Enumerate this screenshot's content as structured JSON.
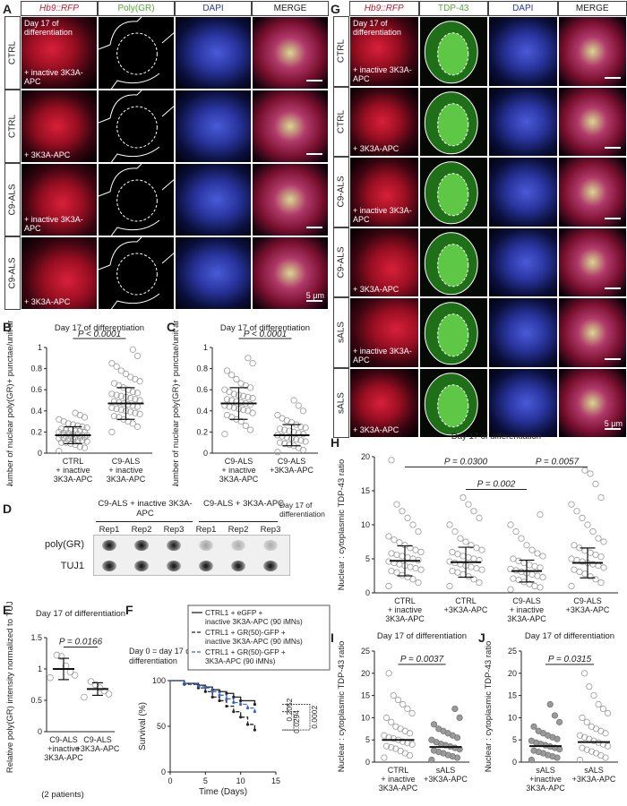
{
  "panel_letters": [
    "A",
    "B",
    "C",
    "D",
    "E",
    "F",
    "G",
    "H",
    "I",
    "J"
  ],
  "panelA": {
    "headers": [
      "Hb9::RFP",
      "Poly(GR)",
      "DAPI",
      "MERGE"
    ],
    "header_colors": [
      "#c0182a",
      "#5aa83a",
      "#2a3aa8",
      "#222222"
    ],
    "rows": [
      {
        "label": "CTRL",
        "condition": "+ inactive 3K3A-APC"
      },
      {
        "label": "CTRL",
        "condition": "+ 3K3A-APC"
      },
      {
        "label": "C9-ALS",
        "condition": "+ inactive 3K3A-APC"
      },
      {
        "label": "C9-ALS",
        "condition": "+ 3K3A-APC"
      }
    ],
    "day_note": "Day 17 of differentiation",
    "scale": "5 μm"
  },
  "panelG": {
    "headers": [
      "Hb9::RFP",
      "TDP-43",
      "DAPI",
      "MERGE"
    ],
    "header_colors": [
      "#c0182a",
      "#5aa83a",
      "#2a3aa8",
      "#222222"
    ],
    "rows": [
      {
        "label": "CTRL",
        "condition": "+ inactive 3K3A-APC"
      },
      {
        "label": "CTRL",
        "condition": "+ 3K3A-APC"
      },
      {
        "label": "C9-ALS",
        "condition": "+ inactive 3K3A-APC"
      },
      {
        "label": "C9-ALS",
        "condition": "+ 3K3A-APC"
      },
      {
        "label": "sALS",
        "condition": "+ inactive 3K3A-APC"
      },
      {
        "label": "sALS",
        "condition": "+ 3K3A-APC"
      }
    ],
    "day_note": "Day 17 of differentiation",
    "scale": "5 μm"
  },
  "panelD": {
    "day_note": "Day 17 of differentiation",
    "groups": [
      "C9-ALS + inactive 3K3A-APC",
      "C9-ALS + 3K3A-APC"
    ],
    "reps": [
      "Rep1",
      "Rep2",
      "Rep3",
      "Rep1",
      "Rep2",
      "Rep3"
    ],
    "row_labels": [
      "poly(GR)",
      "TUJ1"
    ]
  },
  "chart_data": [
    {
      "panel": "B",
      "type": "scatter",
      "title": "Day 17 of differentiation",
      "ylabel": "Number of nuclear poly(GR)+ punctae/unit area",
      "categories": [
        "CTRL + inactive 3K3A-APC",
        "C9-ALS + inactive 3K3A-APC"
      ],
      "ylim": [
        0,
        1.0
      ],
      "yticks": [
        0,
        0.2,
        0.4,
        0.6,
        0.8,
        1.0
      ],
      "means": [
        0.17,
        0.47
      ],
      "sd": [
        0.08,
        0.15
      ],
      "pvalue": "P < 0.0001",
      "dots": [
        [
          0.02,
          0.05,
          0.06,
          0.08,
          0.09,
          0.1,
          0.1,
          0.11,
          0.12,
          0.12,
          0.13,
          0.13,
          0.14,
          0.14,
          0.15,
          0.15,
          0.15,
          0.16,
          0.16,
          0.17,
          0.17,
          0.17,
          0.18,
          0.18,
          0.19,
          0.19,
          0.2,
          0.2,
          0.21,
          0.21,
          0.22,
          0.22,
          0.23,
          0.24,
          0.25,
          0.26,
          0.27,
          0.28,
          0.3,
          0.32,
          0.34,
          0.36,
          0.38
        ],
        [
          0.2,
          0.25,
          0.28,
          0.3,
          0.32,
          0.34,
          0.35,
          0.37,
          0.38,
          0.39,
          0.4,
          0.41,
          0.42,
          0.43,
          0.44,
          0.45,
          0.46,
          0.47,
          0.48,
          0.49,
          0.5,
          0.51,
          0.52,
          0.53,
          0.54,
          0.55,
          0.56,
          0.57,
          0.58,
          0.6,
          0.62,
          0.64,
          0.66,
          0.68,
          0.7,
          0.72,
          0.75,
          0.78,
          0.82,
          0.85,
          0.92,
          0.98
        ]
      ]
    },
    {
      "panel": "C",
      "type": "scatter",
      "title": "Day 17 of differentiation",
      "ylabel": "Number of nuclear poly(GR)+ punctae/unit area",
      "categories": [
        "C9-ALS + inactive 3K3A-APC",
        "C9-ALS +3K3A-APC"
      ],
      "ylim": [
        0,
        1.0
      ],
      "yticks": [
        0,
        0.2,
        0.4,
        0.6,
        0.8,
        1.0
      ],
      "means": [
        0.47,
        0.17
      ],
      "sd": [
        0.15,
        0.1
      ],
      "pvalue": "P < 0.0001",
      "dots": [
        [
          0.18,
          0.22,
          0.26,
          0.3,
          0.32,
          0.34,
          0.36,
          0.38,
          0.4,
          0.41,
          0.42,
          0.43,
          0.44,
          0.45,
          0.46,
          0.47,
          0.48,
          0.49,
          0.5,
          0.51,
          0.52,
          0.53,
          0.54,
          0.55,
          0.56,
          0.58,
          0.6,
          0.62,
          0.64,
          0.66,
          0.7,
          0.74,
          0.78,
          0.85,
          0.9
        ],
        [
          0.01,
          0.03,
          0.05,
          0.07,
          0.08,
          0.09,
          0.1,
          0.11,
          0.12,
          0.13,
          0.14,
          0.15,
          0.16,
          0.17,
          0.18,
          0.19,
          0.2,
          0.21,
          0.22,
          0.23,
          0.24,
          0.25,
          0.27,
          0.29,
          0.31,
          0.33,
          0.36,
          0.4,
          0.45,
          0.5
        ]
      ]
    },
    {
      "panel": "E",
      "type": "scatter",
      "title": "Day 17 of differentiation",
      "ylabel": "Relative poly(GR) intensity normalized to TUJ1",
      "categories": [
        "C9-ALS +inactive 3K3A-APC",
        "C9-ALS +3K3A-APC"
      ],
      "ylim": [
        0,
        1.5
      ],
      "yticks": [
        0,
        0.5,
        1.0,
        1.5
      ],
      "means": [
        1.0,
        0.68
      ],
      "sd": [
        0.17,
        0.1
      ],
      "pvalue": "P = 0.0166",
      "note": "(2 patients)",
      "dots": [
        [
          0.86,
          0.9,
          0.95,
          1.05,
          1.2,
          1.22
        ],
        [
          0.55,
          0.6,
          0.65,
          0.7,
          0.75,
          0.8
        ]
      ]
    },
    {
      "panel": "F",
      "type": "line",
      "xlabel": "Time (Days)",
      "ylabel": "Survival (%)",
      "xlim": [
        0,
        15
      ],
      "ylim": [
        0,
        100
      ],
      "xticks": [
        0,
        5,
        10,
        15
      ],
      "yticks": [
        0,
        50,
        100
      ],
      "annotation": "Day 0 = day 17 of differentiation",
      "series": [
        {
          "name": "CTRL1 + eGFP + inactive 3K3A-APC (90 iMNs)",
          "color": "#222222",
          "dash": "",
          "x": [
            0,
            2,
            4,
            5,
            6,
            7,
            8,
            9,
            10,
            12
          ],
          "y": [
            100,
            97,
            95,
            93,
            90,
            88,
            86,
            82,
            78,
            74
          ]
        },
        {
          "name": "CTRL1 + GR(50)-GFP + inactive 3K3A-APC (90 iMNs)",
          "color": "#222222",
          "dash": "4,2",
          "x": [
            0,
            2,
            4,
            5,
            6,
            7,
            8,
            9,
            10,
            11,
            12
          ],
          "y": [
            100,
            96,
            92,
            88,
            82,
            78,
            72,
            66,
            60,
            52,
            46
          ]
        },
        {
          "name": "CTRL1 + GR(50)-GFP + 3K3A-APC (90 iMNs)",
          "color": "#3a66c8",
          "dash": "4,2",
          "x": [
            0,
            2,
            4,
            5,
            6,
            7,
            8,
            9,
            10,
            11,
            12
          ],
          "y": [
            100,
            97,
            94,
            92,
            88,
            84,
            80,
            76,
            74,
            70,
            66
          ]
        }
      ],
      "pvalues": [
        "0.2052",
        "0.0294",
        "0.0002"
      ]
    },
    {
      "panel": "H",
      "type": "scatter",
      "title": "Day 17 of differentiation",
      "ylabel": "Nuclear : cytoplasmic TDP-43 ratio",
      "categories": [
        "CTRL + inactive 3K3A-APC",
        "CTRL +3K3A-APC",
        "C9-ALS + inactive 3K3A-APC",
        "C9-ALS +3K3A-APC"
      ],
      "ylim": [
        0,
        20
      ],
      "yticks": [
        0,
        5,
        10,
        15,
        20
      ],
      "means": [
        4.7,
        4.5,
        3.2,
        4.4
      ],
      "sd": [
        2.2,
        2.2,
        1.6,
        2.2
      ],
      "pvalues": [
        {
          "label": "P = 0.0300",
          "from": 1,
          "to": 2
        },
        {
          "label": "P = 0.0057",
          "from": 2,
          "to": 3
        },
        {
          "label": "P = 0.002",
          "from": 1,
          "to": 2
        }
      ],
      "dots": [
        [
          1,
          1.5,
          2,
          2.3,
          2.6,
          3,
          3.2,
          3.4,
          3.6,
          3.8,
          4,
          4.2,
          4.4,
          4.6,
          4.8,
          5,
          5.2,
          5.4,
          5.6,
          5.8,
          6,
          6.3,
          6.6,
          7,
          7.4,
          7.8,
          8.3,
          9,
          10,
          11,
          12,
          13,
          19.5
        ],
        [
          1,
          1.5,
          2,
          2.4,
          2.7,
          3,
          3.2,
          3.4,
          3.6,
          3.8,
          4,
          4.2,
          4.4,
          4.6,
          4.8,
          5,
          5.2,
          5.4,
          5.7,
          6,
          6.3,
          6.6,
          7,
          7.5,
          8,
          9,
          10,
          11,
          12,
          13,
          14
        ],
        [
          0.5,
          0.8,
          1,
          1.3,
          1.6,
          1.9,
          2.1,
          2.3,
          2.5,
          2.7,
          2.9,
          3.1,
          3.3,
          3.5,
          3.7,
          3.9,
          4.1,
          4.4,
          4.7,
          5,
          5.4,
          5.8,
          6.3,
          7,
          8,
          9,
          10,
          11.5
        ],
        [
          1,
          1.5,
          2,
          2.4,
          2.8,
          3.1,
          3.4,
          3.7,
          4,
          4.2,
          4.4,
          4.6,
          4.8,
          5,
          5.3,
          5.6,
          5.9,
          6.2,
          6.6,
          7,
          7.5,
          8,
          9,
          10,
          11,
          12,
          13,
          14,
          16,
          17.5,
          18
        ]
      ]
    },
    {
      "panel": "I",
      "type": "scatter",
      "title": "Day 17 of differentiation",
      "ylabel": "Nuclear : cytoplasmic TDP-43 ratio",
      "categories": [
        "CTRL + inactive 3K3A-APC",
        "sALS +3K3A-APC"
      ],
      "ylim": [
        0,
        25
      ],
      "yticks": [
        0,
        5,
        10,
        15,
        20,
        25
      ],
      "means": [
        5.0,
        3.4
      ],
      "sd": [
        0,
        0
      ],
      "pvalue": "P = 0.0037",
      "dots": [
        [
          1,
          1.5,
          2,
          2.5,
          3,
          3.3,
          3.6,
          4,
          4.3,
          4.6,
          5,
          5.3,
          5.6,
          6,
          6.5,
          7,
          7.5,
          8,
          9,
          10,
          11,
          12,
          13,
          14,
          15,
          20
        ],
        [
          0.5,
          1,
          1.3,
          1.6,
          2,
          2.3,
          2.6,
          2.9,
          3.2,
          3.5,
          3.8,
          4.1,
          4.5,
          5,
          5.5,
          6,
          6.5,
          7,
          7.5,
          8.5,
          10,
          12
        ]
      ]
    },
    {
      "panel": "J",
      "type": "scatter",
      "title": "Day 17 of differentiation",
      "ylabel": "Nuclear : cytoplasmic TDP-43 ratio",
      "categories": [
        "sALS +inactive 3K3A-APC",
        "sALS +3K3A-APC"
      ],
      "ylim": [
        0,
        25
      ],
      "yticks": [
        0,
        5,
        10,
        15,
        20,
        25
      ],
      "means": [
        3.6,
        4.5
      ],
      "sd": [
        0,
        0
      ],
      "pvalue": "P = 0.0315",
      "dots": [
        [
          0.5,
          1,
          1.3,
          1.6,
          2,
          2.3,
          2.6,
          2.9,
          3.2,
          3.5,
          3.8,
          4.1,
          4.4,
          4.8,
          5.2,
          5.6,
          6,
          6.5,
          7,
          8,
          9,
          10.5,
          13
        ],
        [
          0.5,
          1,
          1.5,
          2,
          2.4,
          2.8,
          3.2,
          3.6,
          4,
          4.4,
          4.8,
          5.2,
          5.6,
          6,
          6.5,
          7,
          7.5,
          8,
          9,
          10,
          11,
          12,
          13,
          15,
          17,
          20
        ]
      ]
    }
  ]
}
